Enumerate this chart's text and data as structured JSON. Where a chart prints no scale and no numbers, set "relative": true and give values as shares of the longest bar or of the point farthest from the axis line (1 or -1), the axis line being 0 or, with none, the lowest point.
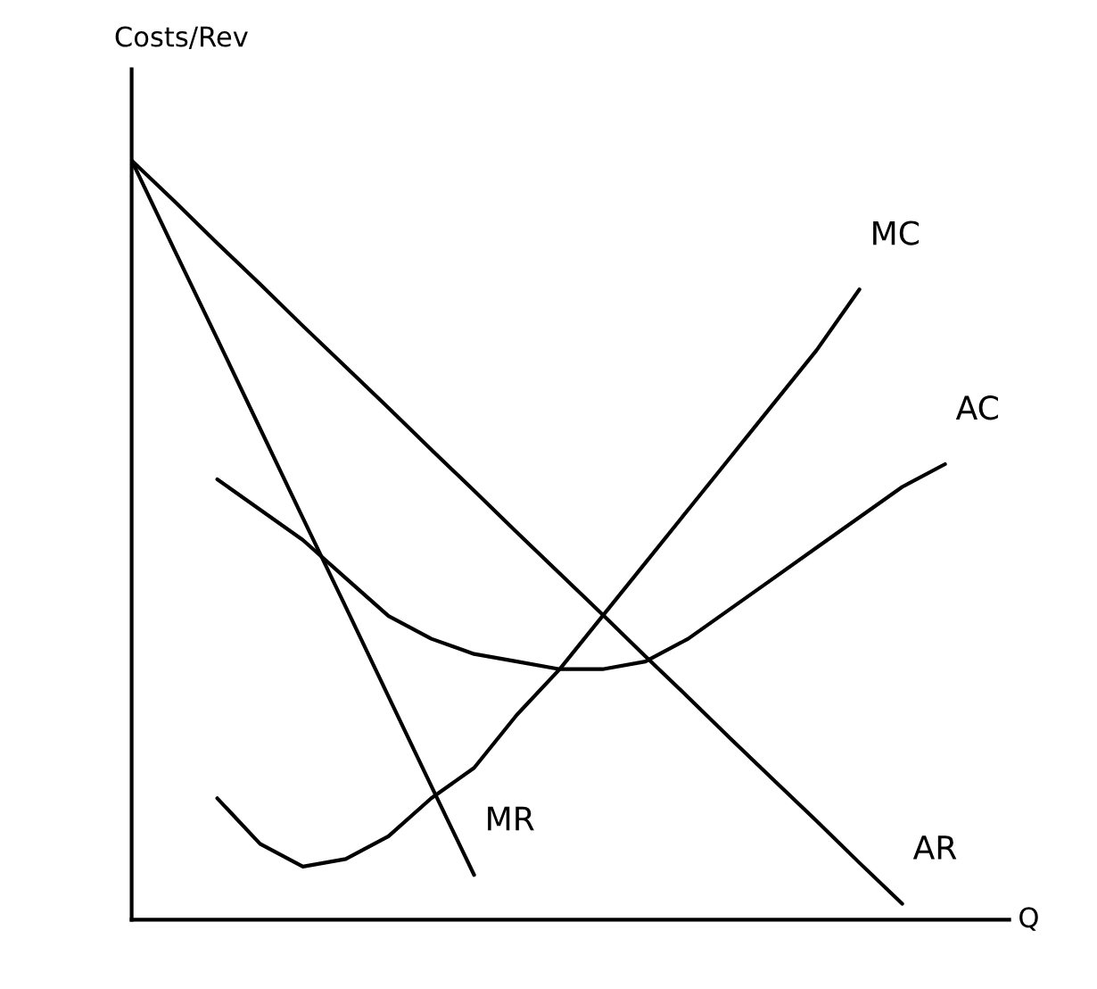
{
  "chart_data": {
    "type": "line",
    "relative": true,
    "xlabel": "Q",
    "ylabel": "Costs/Rev",
    "marker": "none",
    "line_style": "solid",
    "categories": [
      null,
      null,
      null,
      null,
      null,
      null,
      null,
      null,
      null,
      null,
      null,
      null,
      null,
      null,
      null,
      null,
      null,
      null,
      null,
      null
    ],
    "series": [
      {
        "name": "AR",
        "color": "#000000",
        "values": [
          1,
          0.946,
          0.891,
          0.837,
          0.782,
          0.728,
          0.674,
          0.619,
          0.565,
          0.51,
          0.456,
          0.402,
          0.347,
          0.293,
          0.238,
          0.184,
          0.13,
          0.075,
          0.021,
          null
        ]
      },
      {
        "name": "MR",
        "color": "#000000",
        "values": [
          1,
          0.882,
          0.765,
          0.647,
          0.529,
          0.412,
          0.294,
          0.176,
          0.059,
          null,
          null,
          null,
          null,
          null,
          null,
          null,
          null,
          null,
          null,
          null
        ]
      },
      {
        "name": "MC",
        "color": "#000000",
        "values": [
          null,
          null,
          0.16,
          0.1,
          0.07,
          0.08,
          0.11,
          0.16,
          0.2,
          0.27,
          0.33,
          0.4,
          0.47,
          0.54,
          0.61,
          0.68,
          0.75,
          0.83,
          null,
          null
        ]
      },
      {
        "name": "AC",
        "color": "#000000",
        "values": [
          null,
          null,
          0.58,
          0.54,
          0.5,
          0.45,
          0.4,
          0.37,
          0.35,
          0.34,
          0.33,
          0.33,
          0.34,
          0.37,
          0.41,
          0.45,
          0.49,
          0.53,
          0.57,
          0.6
        ]
      }
    ]
  }
}
